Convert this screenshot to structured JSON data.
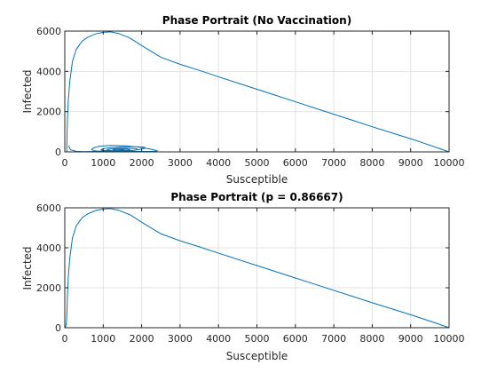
{
  "chart_data": [
    {
      "type": "line",
      "title": "Phase Portrait (No Vaccination)",
      "xlabel": "Susceptible",
      "ylabel": "Infected",
      "xlim": [
        0,
        10000
      ],
      "ylim": [
        0,
        6000
      ],
      "xticks": [
        0,
        1000,
        2000,
        3000,
        4000,
        5000,
        6000,
        7000,
        8000,
        9000,
        10000
      ],
      "yticks": [
        0,
        2000,
        4000,
        6000
      ],
      "grid": true,
      "color": "#0072BD",
      "series": [
        {
          "x": [
            10000,
            9700,
            9300,
            9000,
            8500,
            8000,
            7500,
            7000,
            6500,
            6000,
            5500,
            5000,
            4500,
            4000,
            3500,
            3000,
            2500,
            2000,
            1700,
            1400,
            1200,
            1000,
            800,
            600,
            450,
            300,
            200,
            130,
            90,
            70,
            60,
            55,
            52,
            50,
            55,
            60,
            65
          ],
          "y": [
            0,
            200,
            460,
            650,
            950,
            1250,
            1560,
            1870,
            2180,
            2490,
            2800,
            3110,
            3420,
            3730,
            4050,
            4350,
            4700,
            5280,
            5650,
            5880,
            5960,
            5940,
            5860,
            5700,
            5500,
            5100,
            4500,
            3500,
            2500,
            1700,
            1000,
            500,
            250,
            120,
            60,
            30,
            20
          ]
        },
        {
          "x": [
            100,
            150,
            300,
            500,
            700,
            900,
            1100,
            1300,
            1500,
            1800,
            2100,
            2350,
            2400,
            2300,
            2000,
            1600,
            1200,
            900,
            750,
            700,
            750,
            900,
            1200,
            1500,
            1800,
            2000,
            2100,
            2050,
            1800,
            1500,
            1200,
            1000,
            950,
            1000,
            1200,
            1500,
            1800,
            1900,
            1850,
            1600,
            1350,
            1150,
            1100,
            1200,
            1450,
            1650,
            1700,
            1600,
            1400,
            1250,
            1300,
            1450,
            1550,
            1500,
            1400
          ],
          "y": [
            300,
            100,
            30,
            10,
            20,
            40,
            60,
            70,
            50,
            30,
            20,
            25,
            50,
            110,
            220,
            300,
            320,
            280,
            200,
            120,
            60,
            30,
            25,
            40,
            80,
            140,
            190,
            240,
            260,
            250,
            210,
            160,
            110,
            70,
            40,
            40,
            70,
            120,
            160,
            180,
            170,
            130,
            90,
            60,
            55,
            80,
            110,
            130,
            130,
            110,
            80,
            70,
            85,
            100,
            100
          ]
        }
      ]
    },
    {
      "type": "line",
      "title": "Phase Portrait (p = 0.86667)",
      "xlabel": "Susceptible",
      "ylabel": "Infected",
      "xlim": [
        0,
        10000
      ],
      "ylim": [
        0,
        6000
      ],
      "xticks": [
        0,
        1000,
        2000,
        3000,
        4000,
        5000,
        6000,
        7000,
        8000,
        9000,
        10000
      ],
      "yticks": [
        0,
        2000,
        4000,
        6000
      ],
      "grid": true,
      "color": "#0072BD",
      "series": [
        {
          "x": [
            10000,
            9700,
            9300,
            9000,
            8500,
            8000,
            7500,
            7000,
            6500,
            6000,
            5500,
            5000,
            4500,
            4000,
            3500,
            3000,
            2500,
            2000,
            1700,
            1400,
            1200,
            1000,
            800,
            600,
            450,
            300,
            200,
            130,
            90,
            70,
            60,
            50,
            40,
            30,
            20,
            10,
            5
          ],
          "y": [
            0,
            200,
            460,
            650,
            950,
            1250,
            1560,
            1870,
            2180,
            2490,
            2800,
            3110,
            3420,
            3730,
            4050,
            4350,
            4700,
            5280,
            5650,
            5880,
            5960,
            5940,
            5860,
            5700,
            5500,
            5100,
            4500,
            3500,
            2500,
            1700,
            1000,
            500,
            250,
            120,
            50,
            15,
            0
          ]
        }
      ]
    }
  ]
}
